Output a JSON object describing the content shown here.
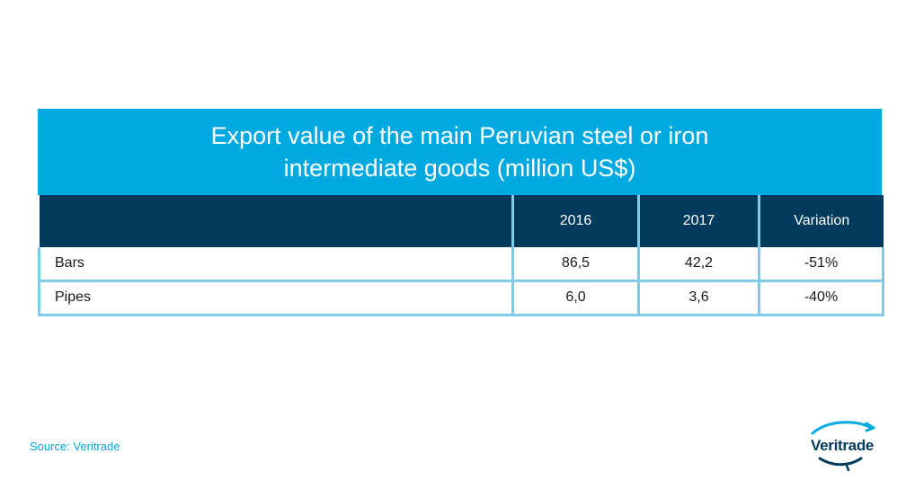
{
  "chart_data": {
    "type": "table",
    "title_lines": [
      "Export value of the main Peruvian steel or iron",
      "intermediate goods (million US$)"
    ],
    "columns": [
      "",
      "2016",
      "2017",
      "Variation"
    ],
    "rows": [
      {
        "label": "Bars",
        "v2016": "86,5",
        "v2017": "42,2",
        "variation": "-51%"
      },
      {
        "label": "Pipes",
        "v2016": "6,0",
        "v2017": "3,6",
        "variation": "-40%"
      }
    ]
  },
  "footer": {
    "source": "Source: Veritrade",
    "logo_text": "Veritrade",
    "logo_icon": "veritrade-swoosh-icon"
  },
  "colors": {
    "title_band": "#00a9df",
    "header_band": "#003a5d",
    "grid_lines": "#7fcbe8",
    "source_text": "#00a9df"
  }
}
